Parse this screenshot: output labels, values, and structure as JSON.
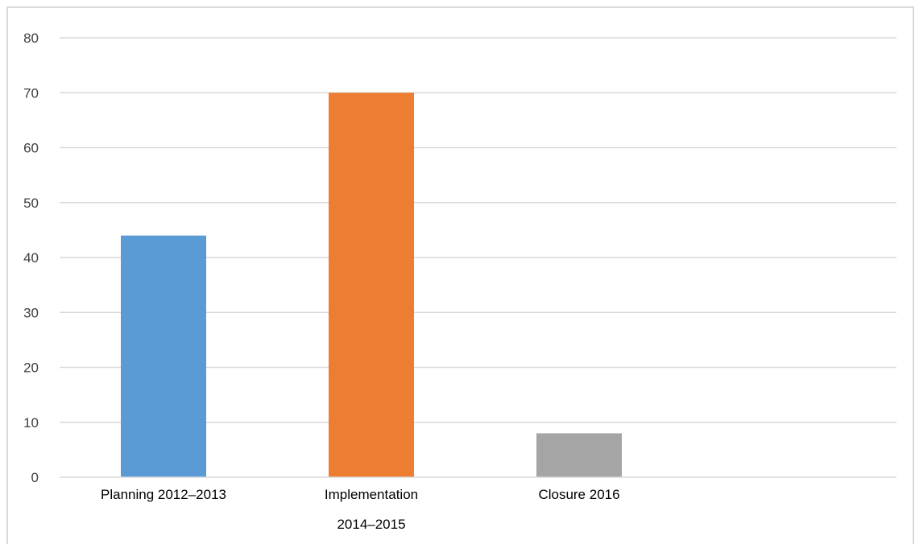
{
  "chart_data": {
    "type": "bar",
    "title": "",
    "xlabel": "",
    "ylabel": "",
    "categories": [
      [
        "Planning 2012–2013"
      ],
      [
        "Implementation",
        "2014–2015"
      ],
      [
        "Closure 2016"
      ]
    ],
    "values": [
      44,
      70,
      8
    ],
    "colors": [
      "#5b9bd5",
      "#ed7d31",
      "#a5a5a5"
    ],
    "ylim": [
      0,
      80
    ],
    "yticks": [
      0,
      10,
      20,
      30,
      40,
      50,
      60,
      70,
      80
    ],
    "grid": true,
    "legend": false,
    "gridColor": "#d9d9d9"
  }
}
